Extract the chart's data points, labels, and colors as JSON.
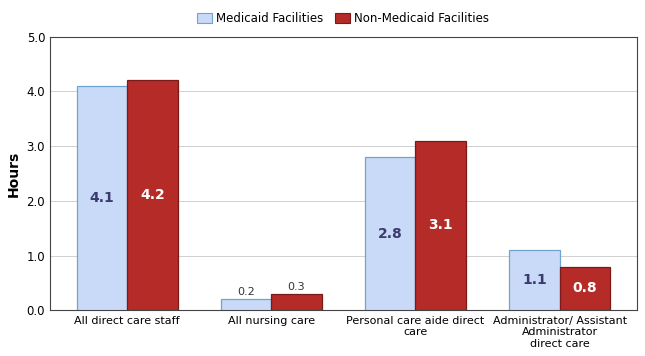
{
  "categories": [
    "All direct care staff",
    "All nursing care",
    "Personal care aide direct\ncare",
    "Administrator/ Assistant\nAdministrator\ndirect care"
  ],
  "medicaid_values": [
    4.1,
    0.2,
    2.8,
    1.1
  ],
  "non_medicaid_values": [
    4.2,
    0.3,
    3.1,
    0.8
  ],
  "medicaid_color": "#c9daf8",
  "non_medicaid_color": "#b52b27",
  "medicaid_edge_color": "#6fa3d0",
  "non_medicaid_edge_color": "#7b1a18",
  "ylabel": "Hours",
  "ylim": [
    0,
    5.0
  ],
  "yticks": [
    0.0,
    1.0,
    2.0,
    3.0,
    4.0,
    5.0
  ],
  "legend_medicaid": "Medicaid Facilities",
  "legend_non_medicaid": "Non-Medicaid Facilities",
  "bar_width": 0.35,
  "label_fontsize": 8.0,
  "tick_fontsize": 8.5,
  "ylabel_fontsize": 10,
  "legend_fontsize": 8.5,
  "value_fontsize_large": 10,
  "value_fontsize_small": 8,
  "value_color_large": "#3a3a6e",
  "value_color_small": "#333333",
  "background_color": "#ffffff",
  "spine_color": "#444444",
  "grid_color": "#d0d0d0"
}
